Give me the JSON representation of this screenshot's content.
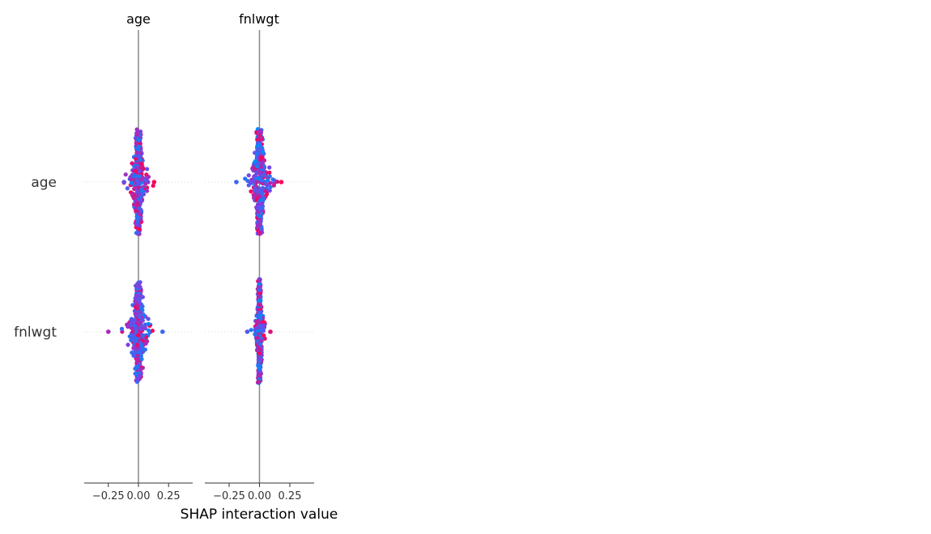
{
  "chart_data": {
    "type": "scatter",
    "subtype": "shap-interaction-summary",
    "xlabel": "SHAP interaction value",
    "features": [
      "age",
      "fnlwgt"
    ],
    "column_titles": [
      "age",
      "fnlwgt"
    ],
    "xlim": [
      -0.45,
      0.45
    ],
    "x_ticks": [
      -0.25,
      0.0,
      0.25
    ],
    "x_tick_labels": [
      "−0.25",
      "0.00",
      "0.25"
    ],
    "colors": {
      "low": "#008bfb",
      "high": "#ff0052",
      "axis": "#333333",
      "zero_line": "#888888",
      "grid": "#cccccc"
    },
    "panels": [
      {
        "column": "age",
        "rows": [
          {
            "row": "age",
            "spread": 0.08,
            "min": -0.12,
            "max": 0.13,
            "vertical_extent": 0.36
          },
          {
            "row": "fnlwgt",
            "spread": 0.1,
            "min": -0.25,
            "max": 0.2,
            "vertical_extent": 0.34
          }
        ]
      },
      {
        "column": "fnlwgt",
        "rows": [
          {
            "row": "age",
            "spread": 0.09,
            "min": -0.19,
            "max": 0.18,
            "vertical_extent": 0.36
          },
          {
            "row": "fnlwgt",
            "spread": 0.04,
            "min": -0.1,
            "max": 0.09,
            "vertical_extent": 0.36
          }
        ]
      }
    ]
  }
}
